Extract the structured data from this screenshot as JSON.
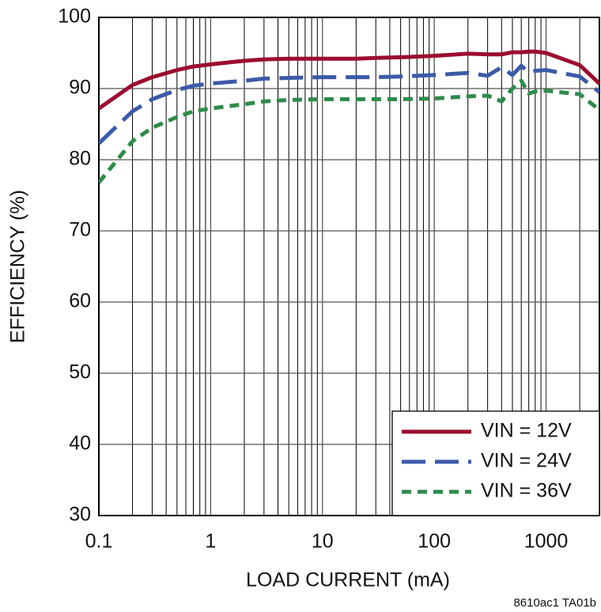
{
  "chart_data": {
    "type": "line",
    "x_label": "LOAD CURRENT (mA)",
    "y_label": "EFFICIENCY (%)",
    "footnote": "8610ac1 TA01b",
    "x": [
      0.1,
      0.2,
      0.3,
      0.5,
      0.7,
      1,
      2,
      3,
      5,
      10,
      20,
      30,
      50,
      100,
      200,
      300,
      400,
      500,
      600,
      700,
      800,
      1000,
      2000,
      3000
    ],
    "series": [
      {
        "name": "VIN = 12V",
        "color": "#9b0d2f",
        "dash": "solid",
        "values": [
          87.2,
          90.5,
          91.6,
          92.6,
          93.1,
          93.4,
          93.9,
          94.1,
          94.2,
          94.2,
          94.2,
          94.3,
          94.4,
          94.6,
          94.9,
          94.8,
          94.8,
          95.1,
          95.1,
          95.2,
          95.2,
          95.0,
          93.3,
          90.7
        ]
      },
      {
        "name": "VIN = 24V",
        "color": "#3b5aa8",
        "dash": "long",
        "values": [
          82.3,
          86.8,
          88.5,
          89.8,
          90.4,
          90.7,
          91.1,
          91.4,
          91.5,
          91.6,
          91.6,
          91.6,
          91.7,
          91.9,
          92.2,
          91.8,
          93.0,
          91.9,
          93.2,
          92.3,
          92.5,
          92.6,
          91.7,
          89.5
        ]
      },
      {
        "name": "VIN = 36V",
        "color": "#2e8b4a",
        "dash": "short",
        "values": [
          76.8,
          82.6,
          84.5,
          86.0,
          86.8,
          87.2,
          87.8,
          88.2,
          88.4,
          88.5,
          88.5,
          88.5,
          88.5,
          88.6,
          88.9,
          89.0,
          88.2,
          90.0,
          91.1,
          89.3,
          89.6,
          89.7,
          89.2,
          87.0
        ]
      }
    ],
    "xlim": [
      0.1,
      3000
    ],
    "ylim": [
      30,
      100
    ],
    "x_scale": "log",
    "xticks": [
      0.1,
      1,
      10,
      100,
      1000
    ],
    "yticks": [
      30,
      40,
      50,
      60,
      70,
      80,
      90,
      100
    ],
    "grid": true,
    "legend": "lower right"
  }
}
